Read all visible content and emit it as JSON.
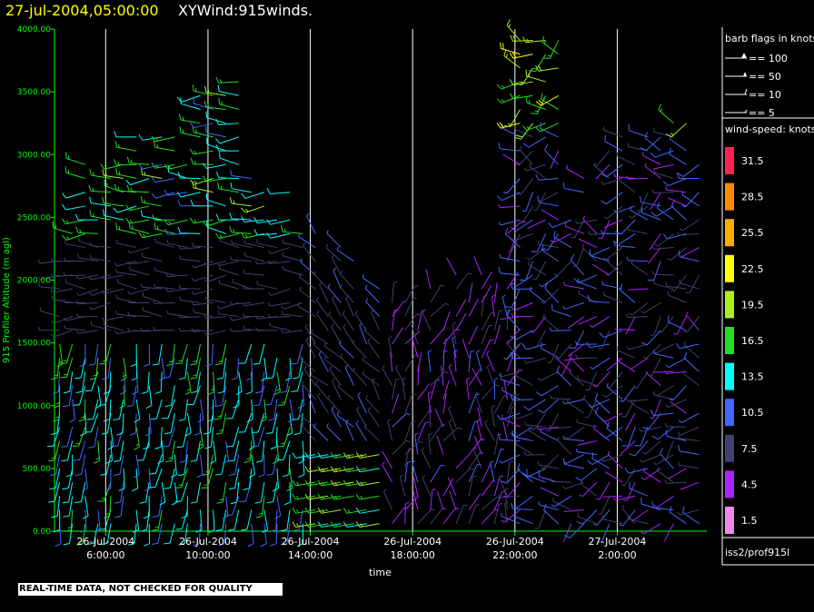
{
  "header": {
    "date": "27-jul-2004,05:00:00",
    "title": "XYWind:915winds."
  },
  "notice": "REAL-TIME DATA, NOT CHECKED FOR QUALITY",
  "legend": {
    "barb_title": "barb flags in knots",
    "barbs": [
      "== 100",
      "== 50",
      "== 10",
      "== 5"
    ],
    "speed_title": "wind-speed: knots",
    "source": "iss2/prof915l"
  },
  "colors": {
    "axis": "#00ff00",
    "gridline": "#ffffff",
    "scale": [
      "#ff2055",
      "#ff8800",
      "#ffaa00",
      "#ffff00",
      "#aaee22",
      "#22dd22",
      "#00ffff",
      "#4466ff",
      "#404070",
      "#aa22ff",
      "#ee88ee"
    ]
  },
  "chart_data": {
    "type": "wind-barb",
    "ylabel": "915 Profiler Altitude (m agl)",
    "xlabel": "time",
    "y_range": [
      0,
      4000
    ],
    "y_ticks": [
      "0.00",
      "500.00",
      "1000.00",
      "1500.00",
      "2000.00",
      "2500.00",
      "3000.00",
      "3500.00",
      "4000.00"
    ],
    "x_range_hours": [
      4.0,
      29.5
    ],
    "x_ticks": [
      {
        "hour": 6,
        "date": "26-Jul-2004",
        "time": "6:00:00"
      },
      {
        "hour": 10,
        "date": "26-Jul-2004",
        "time": "10:00:00"
      },
      {
        "hour": 14,
        "date": "26-Jul-2004",
        "time": "14:00:00"
      },
      {
        "hour": 18,
        "date": "26-Jul-2004",
        "time": "18:00:00"
      },
      {
        "hour": 22,
        "date": "26-Jul-2004",
        "time": "22:00:00"
      },
      {
        "hour": 26,
        "date": "27-Jul-2004",
        "time": "2:00:00"
      }
    ],
    "speed_scale_knots": [
      "31.5",
      "28.5",
      "25.5",
      "22.5",
      "19.5",
      "16.5",
      "13.5",
      "10.5",
      "7.5",
      "4.5",
      "1.5"
    ],
    "barb_time_step_hours": 0.5,
    "barb_alt_step_m": 110
  }
}
